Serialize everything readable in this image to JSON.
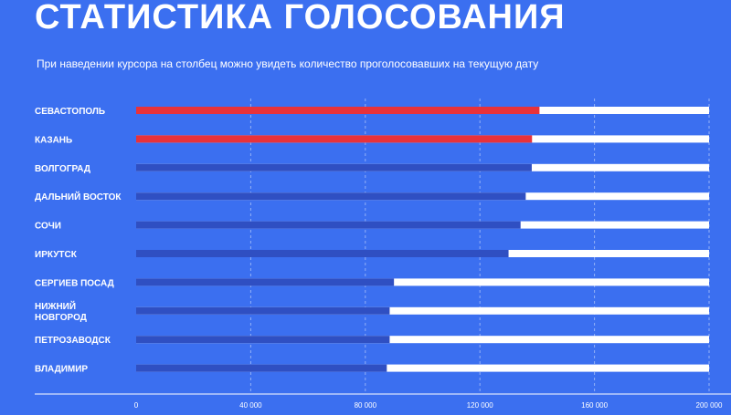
{
  "header": {
    "title": "СТАТИСТИКА ГОЛОСОВАНИЯ",
    "subtitle": "При наведении курсора на столбец можно увидеть количество проголосовавших на текущую дату"
  },
  "chart_data": {
    "type": "bar",
    "orientation": "horizontal",
    "categories": [
      [
        "СЕВАСТОПОЛЬ"
      ],
      [
        "КАЗАНЬ"
      ],
      [
        "ВОЛГОГРАД"
      ],
      [
        "ДАЛЬНИЙ ВОСТОК"
      ],
      [
        "СОЧИ"
      ],
      [
        "ИРКУТСК"
      ],
      [
        "СЕРГИЕВ ПОСАД"
      ],
      [
        "НИЖНИЙ",
        "НОВГОРОД"
      ],
      [
        "ПЕТРОЗАВОДСК"
      ],
      [
        "ВЛАДИМИР"
      ]
    ],
    "values": [
      140800,
      138200,
      138100,
      136000,
      134200,
      130000,
      90000,
      88500,
      88500,
      87500
    ],
    "highlighted": [
      true,
      true,
      false,
      false,
      false,
      false,
      false,
      false,
      false,
      false
    ],
    "xlim": [
      0,
      200000
    ],
    "xticks": [
      0,
      40000,
      80000,
      120000,
      160000,
      200000
    ],
    "xtick_labels": [
      "0",
      "40 000",
      "80 000",
      "120 000",
      "160 000",
      "200 000"
    ],
    "grid": true,
    "colors": {
      "background": "#3b6ff0",
      "bar": "#2f4fc2",
      "highlight": "#e8323a",
      "track": "#ffffff",
      "text": "#ffffff",
      "grid": "#ffffff"
    }
  }
}
